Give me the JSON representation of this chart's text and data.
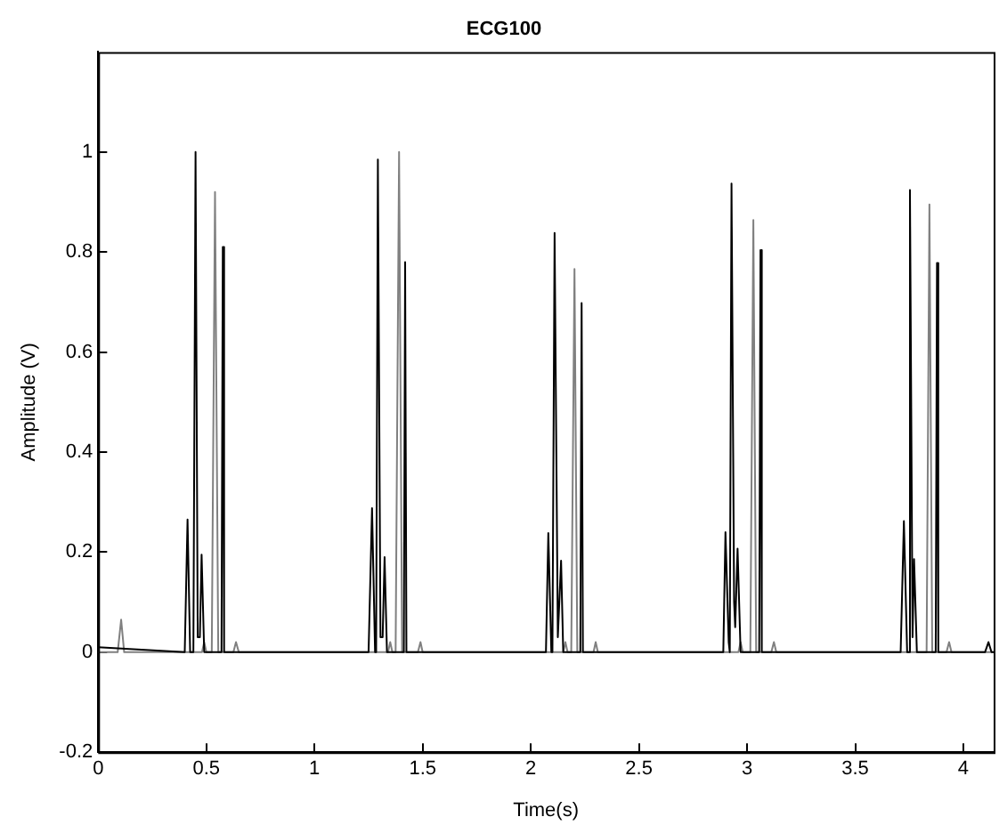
{
  "chart_data": {
    "type": "line",
    "title": "ECG100",
    "xlabel": "Time(s)",
    "ylabel": "Amplitude (V)",
    "xlim": [
      0,
      4.14
    ],
    "xticks": [
      0,
      0.5,
      1,
      1.5,
      2,
      2.5,
      3,
      3.5,
      4
    ],
    "ylim": [
      -0.2,
      1.2
    ],
    "yticks": [
      -0.2,
      0,
      0.2,
      0.4,
      0.6,
      0.8,
      1
    ],
    "grid": false,
    "legend": false,
    "marker": "none",
    "line_style": "solid",
    "series": [
      {
        "color": "#000000",
        "x": [
          0,
          0.4,
          0.413,
          0.425,
          0.44,
          0.45,
          0.46,
          0.47,
          0.478,
          0.49,
          0.57,
          0.576,
          0.582,
          1.25,
          1.266,
          1.28,
          1.285,
          1.293,
          1.305,
          1.315,
          1.324,
          1.335,
          1.413,
          1.419,
          1.425,
          2.07,
          2.081,
          2.095,
          2.1,
          2.11,
          2.125,
          2.13,
          2.14,
          2.15,
          2.229,
          2.235,
          2.241,
          2.89,
          2.9,
          2.915,
          2.92,
          2.928,
          2.94,
          2.945,
          2.956,
          2.97,
          3.056,
          3.062,
          3.068,
          3.71,
          3.725,
          3.74,
          3.745,
          3.753,
          3.765,
          3.772,
          3.785,
          3.872,
          3.878,
          3.884,
          4.1,
          4.116,
          4.13,
          4.14
        ],
        "values": [
          0.01,
          0,
          0.265,
          0,
          0,
          1.0,
          0.03,
          0.03,
          0.195,
          0,
          0,
          0.81,
          0,
          0,
          0.288,
          0,
          0,
          0.985,
          0.03,
          0.03,
          0.19,
          0,
          0,
          0.78,
          0,
          0,
          0.238,
          0,
          0,
          0.838,
          0.03,
          0.03,
          0.183,
          0,
          0,
          0.698,
          0,
          0,
          0.24,
          0.02,
          0,
          0.937,
          0.1,
          0.05,
          0.207,
          0,
          0,
          0.804,
          0,
          0,
          0.262,
          0,
          0,
          0.924,
          0.03,
          0.186,
          0,
          0,
          0.778,
          0,
          0,
          0.02,
          0,
          0
        ]
      },
      {
        "color": "#808080",
        "x": [
          0,
          0.09,
          0.106,
          0.12,
          0.48,
          0.49,
          0.5,
          0.525,
          0.54,
          0.555,
          0.625,
          0.637,
          0.65,
          1.34,
          1.35,
          1.36,
          1.375,
          1.391,
          1.405,
          1.478,
          1.49,
          1.5,
          2.15,
          2.16,
          2.17,
          2.187,
          2.202,
          2.215,
          2.29,
          2.3,
          2.31,
          2.96,
          2.97,
          2.98,
          3.015,
          3.029,
          3.042,
          3.112,
          3.124,
          3.135,
          3.83,
          3.843,
          3.856,
          3.922,
          3.934,
          3.945,
          4.14
        ],
        "values": [
          0,
          0,
          0.065,
          0,
          0,
          0.02,
          0,
          0,
          0.92,
          0,
          0,
          0.02,
          0,
          0,
          0.02,
          0,
          0,
          1.0,
          0,
          0,
          0.02,
          0,
          0,
          0.02,
          0,
          0,
          0.766,
          0,
          0,
          0.02,
          0,
          0,
          0.02,
          0,
          0,
          0.864,
          0,
          0,
          0.02,
          0,
          0,
          0.895,
          0,
          0,
          0.02,
          0,
          0
        ]
      }
    ]
  }
}
